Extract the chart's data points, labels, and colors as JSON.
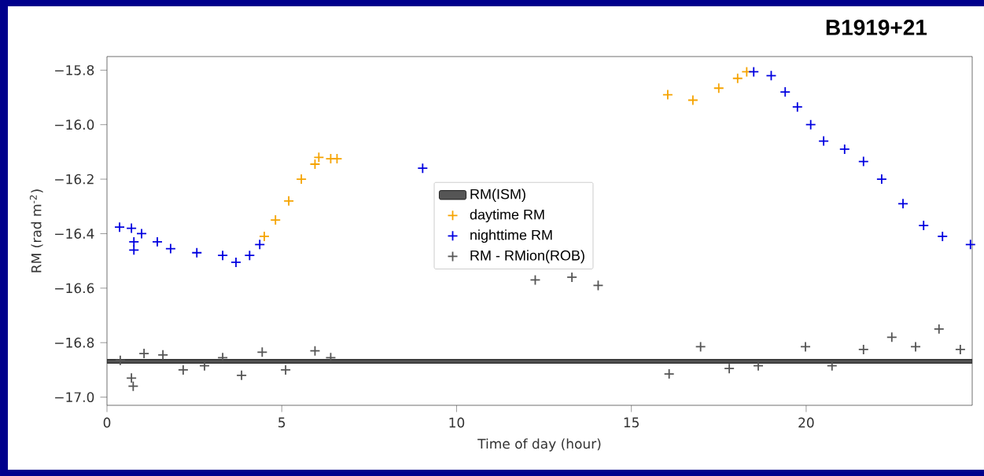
{
  "chart_data": {
    "type": "scatter",
    "title": "B1919+21",
    "xlabel": "Time of day (hour)",
    "ylabel": "RM (rad m$^{-2}$)",
    "xlim": [
      0,
      24.75
    ],
    "ylim": [
      -17.03,
      -15.75
    ],
    "xticks": [
      0,
      5,
      10,
      15,
      20
    ],
    "yticks": [
      {
        "value": -17.0,
        "label": "−17.0"
      },
      {
        "value": -16.8,
        "label": "−16.8"
      },
      {
        "value": -16.6,
        "label": "−16.6"
      },
      {
        "value": -16.4,
        "label": "−16.4"
      },
      {
        "value": -16.2,
        "label": "−16.2"
      },
      {
        "value": -16.0,
        "label": "−16.0"
      },
      {
        "value": -15.8,
        "label": "−15.8"
      }
    ],
    "bands": [
      {
        "axis": "y",
        "from": -16.875,
        "to": -16.862,
        "label": "RM(ISM)",
        "color": "#555555"
      }
    ],
    "marker": "cross",
    "legend": "center",
    "grid": false,
    "series": [
      {
        "name": "daytime RM",
        "color": "#f5a300",
        "x": [
          4.5,
          4.82,
          5.2,
          5.56,
          5.95,
          6.06,
          6.4,
          6.58,
          16.04,
          16.76,
          17.5,
          18.04,
          18.3
        ],
        "values": [
          -16.41,
          -16.35,
          -16.28,
          -16.2,
          -16.145,
          -16.12,
          -16.125,
          -16.125,
          -15.89,
          -15.91,
          -15.866,
          -15.83,
          -15.806
        ]
      },
      {
        "name": "nighttime RM",
        "color": "#0000e0",
        "x": [
          0.36,
          0.7,
          0.77,
          0.77,
          0.99,
          1.44,
          1.82,
          2.57,
          3.31,
          3.69,
          4.08,
          4.37,
          9.03,
          18.5,
          19.0,
          19.4,
          19.75,
          20.13,
          20.5,
          21.1,
          21.64,
          22.16,
          22.77,
          23.36,
          23.9,
          24.7
        ],
        "values": [
          -16.376,
          -16.38,
          -16.46,
          -16.43,
          -16.4,
          -16.43,
          -16.455,
          -16.47,
          -16.48,
          -16.505,
          -16.48,
          -16.44,
          -16.16,
          -15.806,
          -15.82,
          -15.88,
          -15.935,
          -16.0,
          -16.06,
          -16.09,
          -16.135,
          -16.2,
          -16.29,
          -16.37,
          -16.41,
          -16.44
        ]
      },
      {
        "name": "RM - RMion(ROB)",
        "color": "#555555",
        "x": [
          0.38,
          0.7,
          0.75,
          1.06,
          1.6,
          2.18,
          2.79,
          3.31,
          3.85,
          4.44,
          5.11,
          5.95,
          6.4,
          12.25,
          13.3,
          14.05,
          16.08,
          16.98,
          17.8,
          18.63,
          19.98,
          20.74,
          21.64,
          22.45,
          23.13,
          23.8,
          24.41
        ],
        "values": [
          -16.865,
          -16.93,
          -16.96,
          -16.84,
          -16.845,
          -16.9,
          -16.885,
          -16.855,
          -16.92,
          -16.835,
          -16.9,
          -16.83,
          -16.855,
          -16.57,
          -16.56,
          -16.59,
          -16.915,
          -16.815,
          -16.895,
          -16.885,
          -16.815,
          -16.885,
          -16.825,
          -16.78,
          -16.815,
          -16.75,
          -16.825
        ]
      }
    ]
  }
}
